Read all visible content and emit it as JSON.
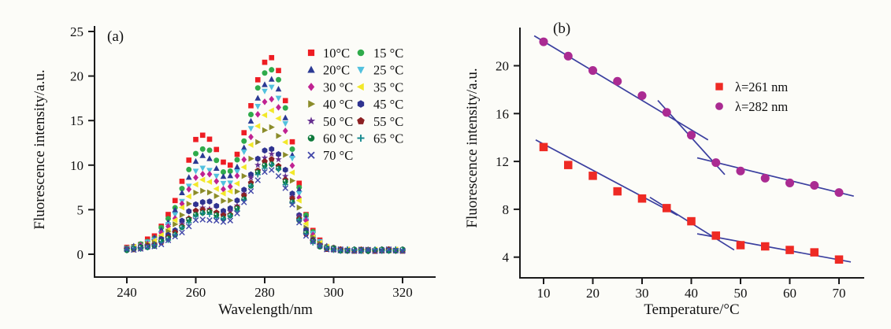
{
  "background": "#fcfcf8",
  "text_color": "#111111",
  "axis_color": "#1a1a1a",
  "chart_data": [
    {
      "id": "a",
      "type": "scatter",
      "panel_label": "(a)",
      "xlabel": "Wavelength/nm",
      "ylabel": "Fluorescence intensity/a.u.",
      "xticks": [
        240,
        260,
        280,
        300,
        320
      ],
      "yticks": [
        0,
        5,
        10,
        15,
        20,
        25
      ],
      "xlim": [
        234,
        330
      ],
      "ylim": [
        0,
        25
      ],
      "wavelength_start": 240,
      "wavelength_end": 320,
      "wavelength_step": 2,
      "baseline": 0.45,
      "peak1_center_nm": 261,
      "peak2_center_nm": 282,
      "peak1_profile": [
        [
          240,
          0.02
        ],
        [
          244,
          0.05
        ],
        [
          248,
          0.12
        ],
        [
          252,
          0.3
        ],
        [
          254,
          0.42
        ],
        [
          256,
          0.6
        ],
        [
          258,
          0.78
        ],
        [
          260,
          0.95
        ],
        [
          261,
          1.0
        ],
        [
          262,
          0.98
        ],
        [
          264,
          0.9
        ],
        [
          266,
          0.73
        ],
        [
          268,
          0.5
        ],
        [
          270,
          0.3
        ],
        [
          272,
          0.17
        ],
        [
          274,
          0.08
        ],
        [
          276,
          0.04
        ],
        [
          278,
          0.02
        ],
        [
          280,
          0.01
        ],
        [
          282,
          0.0
        ],
        [
          320,
          0.0
        ]
      ],
      "peak2_profile": [
        [
          240,
          0.0
        ],
        [
          260,
          0.01
        ],
        [
          262,
          0.02
        ],
        [
          264,
          0.05
        ],
        [
          266,
          0.09
        ],
        [
          268,
          0.16
        ],
        [
          270,
          0.27
        ],
        [
          272,
          0.4
        ],
        [
          274,
          0.56
        ],
        [
          276,
          0.73
        ],
        [
          278,
          0.88
        ],
        [
          280,
          0.97
        ],
        [
          282,
          1.0
        ],
        [
          284,
          0.94
        ],
        [
          286,
          0.78
        ],
        [
          288,
          0.56
        ],
        [
          290,
          0.35
        ],
        [
          292,
          0.19
        ],
        [
          294,
          0.1
        ],
        [
          296,
          0.05
        ],
        [
          298,
          0.02
        ],
        [
          300,
          0.01
        ],
        [
          302,
          0.0
        ],
        [
          320,
          0.0
        ]
      ],
      "series": [
        {
          "label": "10°C",
          "shape": "square",
          "color": "#ee1d23",
          "peak_261": 13.2,
          "peak_282": 22.0
        },
        {
          "label": "15 °C",
          "shape": "circle",
          "color": "#2fab4b",
          "peak_261": 11.7,
          "peak_282": 20.8
        },
        {
          "label": "20°C",
          "shape": "triangle-up",
          "color": "#2b3a94",
          "peak_261": 10.8,
          "peak_282": 19.6
        },
        {
          "label": "25 °C",
          "shape": "triangle-down",
          "color": "#52c1de",
          "peak_261": 9.5,
          "peak_282": 18.7
        },
        {
          "label": "30 °C",
          "shape": "diamond",
          "color": "#c02292",
          "peak_261": 8.9,
          "peak_282": 17.5
        },
        {
          "label": "35 °C",
          "shape": "triangle-left",
          "color": "#f2e829",
          "peak_261": 8.1,
          "peak_282": 16.1
        },
        {
          "label": "40 °C",
          "shape": "triangle-right",
          "color": "#8b8c2a",
          "peak_261": 7.0,
          "peak_282": 14.2
        },
        {
          "label": "45 °C",
          "shape": "hexagon",
          "color": "#2f3390",
          "peak_261": 5.8,
          "peak_282": 11.9
        },
        {
          "label": "50 °C",
          "shape": "star",
          "color": "#663090",
          "peak_261": 5.0,
          "peak_282": 11.2
        },
        {
          "label": "55 °C",
          "shape": "pentagon",
          "color": "#8c2022",
          "peak_261": 4.9,
          "peak_282": 10.6
        },
        {
          "label": "60 °C",
          "shape": "sphere",
          "color": "#0e7a3c",
          "peak_261": 4.6,
          "peak_282": 10.2
        },
        {
          "label": "65 °C",
          "shape": "plus",
          "color": "#178a8f",
          "peak_261": 4.4,
          "peak_282": 10.0
        },
        {
          "label": "70 °C",
          "shape": "x",
          "color": "#4247a9",
          "peak_261": 3.8,
          "peak_282": 9.4
        }
      ]
    },
    {
      "id": "b",
      "type": "scatter",
      "panel_label": "(b)",
      "xlabel": "Temperature/°C",
      "ylabel": "Fluorescence intensity/a.u.",
      "xticks": [
        10,
        20,
        30,
        40,
        50,
        60,
        70
      ],
      "yticks": [
        4,
        8,
        12,
        16,
        20
      ],
      "xlim": [
        5,
        75
      ],
      "ylim": [
        2,
        23
      ],
      "temperatures": [
        10,
        15,
        20,
        25,
        30,
        35,
        40,
        45,
        50,
        55,
        60,
        65,
        70
      ],
      "series": [
        {
          "label": "λ=261 nm",
          "shape": "square",
          "color": "#ee2a24",
          "values": [
            13.2,
            11.7,
            10.8,
            9.5,
            8.9,
            8.1,
            7.0,
            5.8,
            5.0,
            4.9,
            4.6,
            4.4,
            3.8
          ]
        },
        {
          "label": "λ=282 nm",
          "shape": "circle",
          "color": "#aa2b92",
          "values": [
            22.0,
            20.8,
            19.6,
            18.7,
            17.5,
            16.1,
            14.2,
            11.9,
            11.2,
            10.6,
            10.2,
            10.0,
            9.4
          ]
        }
      ],
      "fit_line_color": "#3b3f9f",
      "fit_lines": [
        {
          "series": "λ=282 nm",
          "x1": 8.1,
          "y1": 22.5,
          "x2": 43.4,
          "y2": 13.8
        },
        {
          "series": "λ=282 nm",
          "x1": 33.2,
          "y1": 17.1,
          "x2": 46.8,
          "y2": 10.9
        },
        {
          "series": "λ=282 nm",
          "x1": 41.2,
          "y1": 12.3,
          "x2": 73.0,
          "y2": 9.1
        },
        {
          "series": "λ=261 nm",
          "x1": 8.4,
          "y1": 13.8,
          "x2": 37.2,
          "y2": 7.5
        },
        {
          "series": "λ=261 nm",
          "x1": 31.6,
          "y1": 9.0,
          "x2": 48.7,
          "y2": 4.6
        },
        {
          "series": "λ=261 nm",
          "x1": 41.2,
          "y1": 5.95,
          "x2": 72.4,
          "y2": 3.6
        }
      ]
    }
  ]
}
